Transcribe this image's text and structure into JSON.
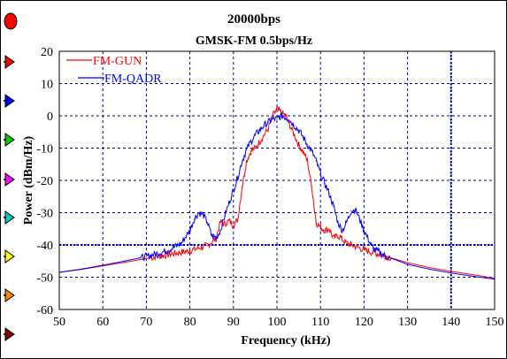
{
  "colors": {
    "background": "#ffffff",
    "grid": "#0000aa",
    "fm_gun": "#ff0000",
    "fm_qadr": "#0000ff"
  },
  "sidebar": {
    "markers": [
      {
        "name": "marker-1",
        "color": "#ff0000",
        "shape": "circle"
      },
      {
        "name": "marker-2",
        "color": "#ff0000",
        "shape": "arrow"
      },
      {
        "name": "marker-3",
        "color": "#0000ff",
        "shape": "arrow"
      },
      {
        "name": "marker-4",
        "color": "#00cc00",
        "shape": "arrow"
      },
      {
        "name": "marker-5",
        "color": "#ff00ff",
        "shape": "arrow"
      },
      {
        "name": "marker-6",
        "color": "#00cccc",
        "shape": "arrow"
      },
      {
        "name": "marker-7",
        "color": "#ffff00",
        "shape": "arrow"
      },
      {
        "name": "marker-8",
        "color": "#ff8800",
        "shape": "arrow"
      },
      {
        "name": "marker-9",
        "color": "#880000",
        "shape": "arrow"
      }
    ]
  },
  "chart_data": {
    "type": "line",
    "title": "20000bps",
    "subtitle": "GMSK-FM 0.5bps/Hz",
    "xlabel": "Frequency (kHz)",
    "ylabel": "Power (dBm/Hz)",
    "xlim": [
      50,
      150
    ],
    "ylim": [
      -60,
      20
    ],
    "xticks": [
      50,
      60,
      70,
      80,
      90,
      100,
      110,
      120,
      130,
      140,
      150
    ],
    "yticks": [
      20,
      10,
      0,
      -10,
      -20,
      -30,
      -40,
      -50,
      -60
    ],
    "grid": true,
    "legend_position": "top-left",
    "reference_lines": {
      "x": 140,
      "y": -40
    },
    "series": [
      {
        "name": "FM-GUN",
        "color": "#ff0000",
        "x": [
          50,
          55,
          60,
          65,
          70,
          75,
          80,
          84,
          86,
          87,
          88,
          89,
          90,
          91,
          92,
          93,
          94,
          95,
          96,
          97,
          98,
          99,
          100,
          101,
          102,
          103,
          104,
          105,
          106,
          107,
          108,
          109,
          110,
          111,
          112,
          113,
          114,
          116,
          118,
          120,
          125,
          130,
          135,
          140,
          145,
          150
        ],
        "y": [
          -48.5,
          -47.6,
          -46.5,
          -45.4,
          -44.2,
          -43.0,
          -41.8,
          -40.2,
          -38.0,
          -33.0,
          -33.5,
          -32.5,
          -34.0,
          -32.0,
          -22.0,
          -14.0,
          -11.0,
          -10.0,
          -8.0,
          -6.0,
          -4.0,
          0.0,
          2.0,
          1.0,
          0.0,
          -3.0,
          -6.0,
          -9.0,
          -11.0,
          -14.0,
          -22.0,
          -33.0,
          -34.5,
          -35.5,
          -35.0,
          -38.0,
          -37.0,
          -39.5,
          -40.5,
          -41.5,
          -43.5,
          -45.5,
          -47.0,
          -48.2,
          -49.2,
          -50.3
        ]
      },
      {
        "name": "FM-QADR",
        "color": "#0000ff",
        "x": [
          50,
          55,
          60,
          65,
          70,
          75,
          78,
          80,
          81,
          82,
          83,
          84,
          85,
          86,
          87,
          88,
          89,
          90,
          91,
          92,
          93,
          94,
          95,
          96,
          97,
          98,
          99,
          100,
          101,
          102,
          103,
          104,
          105,
          106,
          107,
          108,
          109,
          110,
          111,
          112,
          113,
          114,
          115,
          116,
          117,
          118,
          119,
          120,
          122,
          125,
          130,
          135,
          140,
          145,
          150
        ],
        "y": [
          -48.5,
          -47.5,
          -46.3,
          -45.0,
          -43.6,
          -41.7,
          -39.5,
          -35.5,
          -32.0,
          -30.0,
          -30.5,
          -33.0,
          -37.0,
          -38.0,
          -35.5,
          -31.0,
          -27.0,
          -23.0,
          -19.0,
          -14.0,
          -10.5,
          -8.0,
          -6.0,
          -4.5,
          -3.0,
          -2.0,
          -1.0,
          -1.0,
          0.0,
          -0.5,
          -1.5,
          -3.0,
          -4.5,
          -6.5,
          -9.0,
          -11.0,
          -14.0,
          -18.0,
          -21.0,
          -24.0,
          -28.0,
          -33.0,
          -35.5,
          -33.0,
          -29.5,
          -29.0,
          -32.0,
          -35.5,
          -41.0,
          -43.5,
          -46.0,
          -47.5,
          -48.7,
          -49.7,
          -50.6
        ]
      }
    ]
  }
}
